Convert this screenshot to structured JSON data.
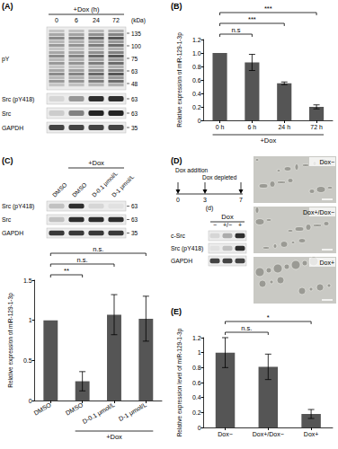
{
  "figure": {
    "A": {
      "letter": "(A)",
      "treatment": "+Dox (h)",
      "lanes": [
        "0",
        "6",
        "24",
        "72"
      ],
      "unit": "(kDa)",
      "blots": [
        {
          "label": "pY",
          "markers": [
            135,
            100,
            75,
            63,
            48
          ],
          "intensity": [
            0.55,
            0.6,
            0.75,
            0.85
          ]
        },
        {
          "label": "Src (pY418)",
          "markers": [
            63
          ],
          "intensity": [
            0.1,
            0.4,
            0.9,
            0.9
          ]
        },
        {
          "label": "Src",
          "markers": [
            63
          ],
          "intensity": [
            0.15,
            0.5,
            0.95,
            0.95
          ]
        },
        {
          "label": "GAPDH",
          "markers": [
            35
          ],
          "intensity": [
            0.8,
            0.8,
            0.8,
            0.8
          ]
        }
      ]
    },
    "B": {
      "letter": "(B)"
    },
    "C": {
      "letter": "(C)",
      "treatment": "+Dox",
      "treated_from": 1,
      "lanes": [
        "DMSO",
        "DMSO",
        "D-0.1 μmol/L",
        "D-1 μmol/L"
      ],
      "blots": [
        {
          "label": "Src (pY418)",
          "markers": [
            63
          ],
          "intensity": [
            0.2,
            0.9,
            0.1,
            0.05
          ]
        },
        {
          "label": "Src",
          "markers": [
            63
          ],
          "intensity": [
            0.2,
            0.9,
            0.9,
            0.9
          ]
        },
        {
          "label": "GAPDH",
          "markers": [
            35
          ],
          "intensity": [
            0.85,
            0.85,
            0.85,
            0.85
          ]
        }
      ]
    },
    "D": {
      "letter": "(D)",
      "timeline": {
        "events": [
          {
            "day": 0,
            "label": "Dox addition"
          },
          {
            "day": 3,
            "label": "Dox depleted"
          },
          {
            "day": 7
          }
        ],
        "unit": "(d)"
      },
      "treatment": "Dox",
      "lanes": [
        "−",
        "+/−",
        "+"
      ],
      "blots": [
        {
          "label": "c-Src",
          "intensity": [
            0.1,
            0.3,
            0.9
          ]
        },
        {
          "label": "Src (pY418)",
          "intensity": [
            0.05,
            0.2,
            0.9
          ]
        },
        {
          "label": "GAPDH",
          "intensity": [
            0.8,
            0.8,
            0.8
          ]
        }
      ],
      "images": [
        "Dox−",
        "Dox+/Dox−",
        "Dox+"
      ]
    },
    "E": {
      "letter": "(E)"
    }
  },
  "chart_data": [
    {
      "type": "bar",
      "categories": [
        "0 h",
        "6 h",
        "24 h",
        "72 h"
      ],
      "values": [
        1,
        0.86,
        0.55,
        0.2
      ],
      "errors": [
        0,
        0.12,
        0.02,
        0.03
      ],
      "color": "#555555",
      "y_label": "Relative expression of miR-129-1-3p",
      "x_group": {
        "label": "+Dox",
        "from": 0,
        "to": 3
      },
      "significance": [
        {
          "from": 0,
          "to": 1,
          "label": "n.s"
        },
        {
          "from": 0,
          "to": 2,
          "label": "***"
        },
        {
          "from": 0,
          "to": 3,
          "label": "***"
        }
      ],
      "ylim": [
        0,
        1.2
      ],
      "yticks": [
        0,
        0.2,
        0.4,
        0.6,
        0.8,
        {
          "value": 1,
          "label": "1.0"
        },
        1.2
      ],
      "grid": false
    },
    {
      "type": "bar",
      "categories": [
        "DMSO",
        "DMSO",
        "D-0.1 μmol/L",
        "D-1 μmol/L"
      ],
      "values": [
        1,
        0.24,
        1.07,
        1.02
      ],
      "errors": [
        0,
        0.12,
        0.25,
        0.28
      ],
      "color": "#555555",
      "y_label": "Relative expression of miR-129-1-3p",
      "x_group": {
        "label": "+Dox",
        "from": 1,
        "to": 3
      },
      "significance": [
        {
          "from": 0,
          "to": 1,
          "label": "**"
        },
        {
          "from": 0,
          "to": 2,
          "label": "n.s."
        },
        {
          "from": 0,
          "to": 3,
          "label": "n.s."
        }
      ],
      "ylim": [
        0,
        1.5
      ],
      "yticks": [
        0,
        0.5,
        1,
        1.5
      ],
      "grid": false
    },
    {
      "type": "bar",
      "categories": [
        "Dox−",
        "Dox+/Dox−",
        "Dox+"
      ],
      "values": [
        1,
        0.81,
        0.18
      ],
      "errors": [
        0.2,
        0.17,
        0.06
      ],
      "color": "#555555",
      "y_label": "Relative expression level of miR-129-1-3p",
      "significance": [
        {
          "from": 0,
          "to": 1,
          "label": "n.s."
        },
        {
          "from": 0,
          "to": 2,
          "label": "*"
        }
      ],
      "ylim": [
        0,
        1.2
      ],
      "yticks": [
        0,
        0.2,
        0.4,
        0.6,
        0.8,
        1,
        1.2
      ],
      "grid": false
    }
  ]
}
